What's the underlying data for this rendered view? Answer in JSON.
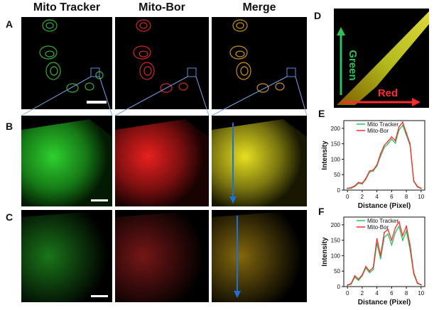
{
  "columns": [
    "Mito Tracker",
    "Mito-Bor",
    "Merge"
  ],
  "panel_letters": {
    "A": "A",
    "B": "B",
    "C": "C",
    "D": "D",
    "E": "E",
    "F": "F"
  },
  "scatter": {
    "y_label": "Green",
    "x_label": "Red"
  },
  "colors": {
    "green": "#22c55e",
    "red": "#ff2a2a",
    "merge": "#e0d020",
    "arrow": "#1e6fd9",
    "zoom_line": "#7aa7e8"
  },
  "chart_data": [
    {
      "type": "line",
      "panel": "E",
      "xlabel": "Distance (Pixel)",
      "ylabel": "Intensity",
      "xlim": [
        -0.5,
        10.5
      ],
      "ylim": [
        0,
        225
      ],
      "xticks": [
        0,
        2,
        4,
        6,
        8,
        10
      ],
      "yticks": [
        0,
        50,
        100,
        150,
        200
      ],
      "legend_position": "top-left",
      "series": [
        {
          "name": "Mito Tracker",
          "color": "#22c55e",
          "x": [
            0,
            0.5,
            1,
            1.5,
            2,
            2.5,
            3,
            3.5,
            4,
            4.5,
            5,
            5.5,
            6,
            6.5,
            7,
            7.5,
            8,
            8.5,
            9,
            9.5,
            10
          ],
          "y": [
            5,
            6,
            12,
            22,
            20,
            35,
            58,
            62,
            78,
            110,
            138,
            150,
            165,
            152,
            195,
            210,
            178,
            145,
            28,
            10,
            5
          ]
        },
        {
          "name": "Mito-Bor",
          "color": "#ff2a2a",
          "x": [
            0,
            0.5,
            1,
            1.5,
            2,
            2.5,
            3,
            3.5,
            4,
            4.5,
            5,
            5.5,
            6,
            6.5,
            7,
            7.5,
            8,
            8.5,
            9,
            9.5,
            10
          ],
          "y": [
            6,
            8,
            14,
            25,
            22,
            38,
            62,
            65,
            82,
            118,
            145,
            158,
            172,
            160,
            205,
            220,
            185,
            150,
            30,
            12,
            6
          ]
        }
      ]
    },
    {
      "type": "line",
      "panel": "F",
      "xlabel": "Distance (Pixel)",
      "ylabel": "Intensity",
      "xlim": [
        -0.5,
        10.5
      ],
      "ylim": [
        0,
        225
      ],
      "xticks": [
        0,
        2,
        4,
        6,
        8,
        10
      ],
      "yticks": [
        0,
        50,
        100,
        150,
        200
      ],
      "legend_position": "top-left",
      "series": [
        {
          "name": "Mito Tracker",
          "color": "#22c55e",
          "x": [
            0,
            0.5,
            1,
            1.5,
            2,
            2.5,
            3,
            3.5,
            4,
            4.5,
            5,
            5.5,
            6,
            6.5,
            7,
            7.5,
            8,
            8.5,
            9,
            9.5,
            10
          ],
          "y": [
            4,
            8,
            30,
            20,
            35,
            60,
            45,
            55,
            140,
            90,
            160,
            170,
            135,
            175,
            195,
            150,
            180,
            120,
            40,
            10,
            5
          ]
        },
        {
          "name": "Mito-Bor",
          "color": "#ff2a2a",
          "x": [
            0,
            0.5,
            1,
            1.5,
            2,
            2.5,
            3,
            3.5,
            4,
            4.5,
            5,
            5.5,
            6,
            6.5,
            7,
            7.5,
            8,
            8.5,
            9,
            9.5,
            10
          ],
          "y": [
            5,
            10,
            35,
            24,
            38,
            65,
            50,
            62,
            155,
            100,
            175,
            185,
            150,
            190,
            210,
            165,
            195,
            135,
            45,
            12,
            6
          ]
        }
      ]
    }
  ]
}
